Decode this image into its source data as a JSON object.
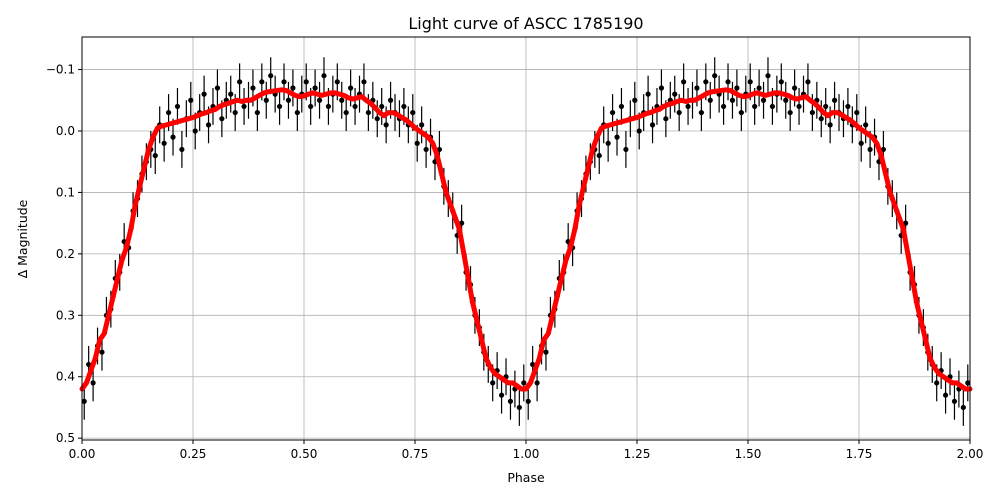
{
  "chart_data": {
    "type": "scatter",
    "title": "Light curve of ASCC 1785190",
    "xlabel": "Phase",
    "ylabel": "Δ Magnitude",
    "xlim": [
      0,
      2.0
    ],
    "ylim": [
      -0.153,
      0.503
    ],
    "y_inverted": true,
    "grid": true,
    "xticks": [
      0,
      0.25,
      0.5,
      0.75,
      1.0,
      1.25,
      1.5,
      1.75,
      2.0
    ],
    "xtick_labels": [
      "0.00",
      "0.25",
      "0.50",
      "0.75",
      "1.00",
      "1.25",
      "1.50",
      "1.75",
      "2.00"
    ],
    "yticks": [
      -0.1,
      0.0,
      0.1,
      0.2,
      0.3,
      0.4,
      0.5
    ],
    "ytick_labels": [
      "−0.1",
      "0.0",
      "0.1",
      "0.2",
      "0.3",
      "0.4",
      "0.5"
    ],
    "phase_repeated_cycles": 2,
    "colors": {
      "observations": "#000000",
      "model": "#ff0000",
      "grid": "#b0b0b0"
    },
    "observations": {
      "error": 0.03,
      "phase": [
        0.005,
        0.015,
        0.025,
        0.035,
        0.045,
        0.055,
        0.065,
        0.075,
        0.085,
        0.095,
        0.105,
        0.115,
        0.125,
        0.135,
        0.145,
        0.155,
        0.165,
        0.175,
        0.185,
        0.195,
        0.205,
        0.215,
        0.225,
        0.235,
        0.245,
        0.255,
        0.265,
        0.275,
        0.285,
        0.295,
        0.305,
        0.315,
        0.325,
        0.335,
        0.345,
        0.355,
        0.365,
        0.375,
        0.385,
        0.395,
        0.405,
        0.415,
        0.425,
        0.435,
        0.445,
        0.455,
        0.465,
        0.475,
        0.485,
        0.495,
        0.505,
        0.515,
        0.525,
        0.535,
        0.545,
        0.555,
        0.565,
        0.575,
        0.585,
        0.595,
        0.605,
        0.615,
        0.625,
        0.635,
        0.645,
        0.655,
        0.665,
        0.675,
        0.685,
        0.695,
        0.705,
        0.715,
        0.725,
        0.735,
        0.745,
        0.755,
        0.765,
        0.775,
        0.785,
        0.795,
        0.805,
        0.815,
        0.825,
        0.835,
        0.845,
        0.855,
        0.865,
        0.875,
        0.885,
        0.895,
        0.905,
        0.915,
        0.925,
        0.935,
        0.945,
        0.955,
        0.965,
        0.975,
        0.985,
        0.995
      ],
      "mag": [
        0.44,
        0.38,
        0.41,
        0.35,
        0.36,
        0.3,
        0.29,
        0.24,
        0.23,
        0.18,
        0.19,
        0.13,
        0.11,
        0.07,
        0.05,
        0.03,
        0.04,
        -0.01,
        0.02,
        -0.03,
        0.01,
        -0.04,
        0.03,
        -0.02,
        -0.05,
        0.0,
        -0.03,
        -0.06,
        -0.01,
        -0.04,
        -0.07,
        -0.02,
        -0.05,
        -0.06,
        -0.03,
        -0.08,
        -0.04,
        -0.05,
        -0.07,
        -0.03,
        -0.08,
        -0.05,
        -0.09,
        -0.06,
        -0.04,
        -0.08,
        -0.05,
        -0.07,
        -0.03,
        -0.06,
        -0.08,
        -0.04,
        -0.07,
        -0.05,
        -0.09,
        -0.04,
        -0.06,
        -0.08,
        -0.05,
        -0.03,
        -0.07,
        -0.04,
        -0.06,
        -0.08,
        -0.03,
        -0.05,
        -0.02,
        -0.04,
        -0.01,
        -0.05,
        -0.03,
        -0.02,
        -0.04,
        -0.01,
        -0.03,
        0.02,
        -0.01,
        0.03,
        0.01,
        0.05,
        0.03,
        0.09,
        0.11,
        0.13,
        0.17,
        0.15,
        0.23,
        0.25,
        0.3,
        0.32,
        0.36,
        0.38,
        0.41,
        0.39,
        0.43,
        0.4,
        0.44,
        0.42,
        0.45,
        0.41
      ]
    },
    "model": {
      "phase_step": 0.01,
      "mag": [
        0.42,
        0.41,
        0.39,
        0.37,
        0.34,
        0.33,
        0.3,
        0.27,
        0.24,
        0.21,
        0.19,
        0.16,
        0.12,
        0.09,
        0.06,
        0.03,
        0.01,
        -0.005,
        -0.008,
        -0.01,
        -0.012,
        -0.014,
        -0.016,
        -0.018,
        -0.02,
        -0.022,
        -0.025,
        -0.028,
        -0.03,
        -0.033,
        -0.035,
        -0.04,
        -0.043,
        -0.045,
        -0.048,
        -0.05,
        -0.048,
        -0.05,
        -0.05,
        -0.054,
        -0.058,
        -0.062,
        -0.064,
        -0.065,
        -0.066,
        -0.067,
        -0.066,
        -0.062,
        -0.058,
        -0.056,
        -0.057,
        -0.06,
        -0.062,
        -0.06,
        -0.058,
        -0.06,
        -0.062,
        -0.062,
        -0.06,
        -0.058,
        -0.054,
        -0.052,
        -0.054,
        -0.056,
        -0.05,
        -0.045,
        -0.038,
        -0.03,
        -0.025,
        -0.03,
        -0.03,
        -0.027,
        -0.022,
        -0.018,
        -0.012,
        -0.005,
        0.0,
        0.005,
        0.01,
        0.02,
        0.04,
        0.07,
        0.1,
        0.12,
        0.14,
        0.16,
        0.2,
        0.24,
        0.28,
        0.31,
        0.34,
        0.37,
        0.385,
        0.395,
        0.4,
        0.405,
        0.41,
        0.41,
        0.415,
        0.42
      ]
    }
  }
}
